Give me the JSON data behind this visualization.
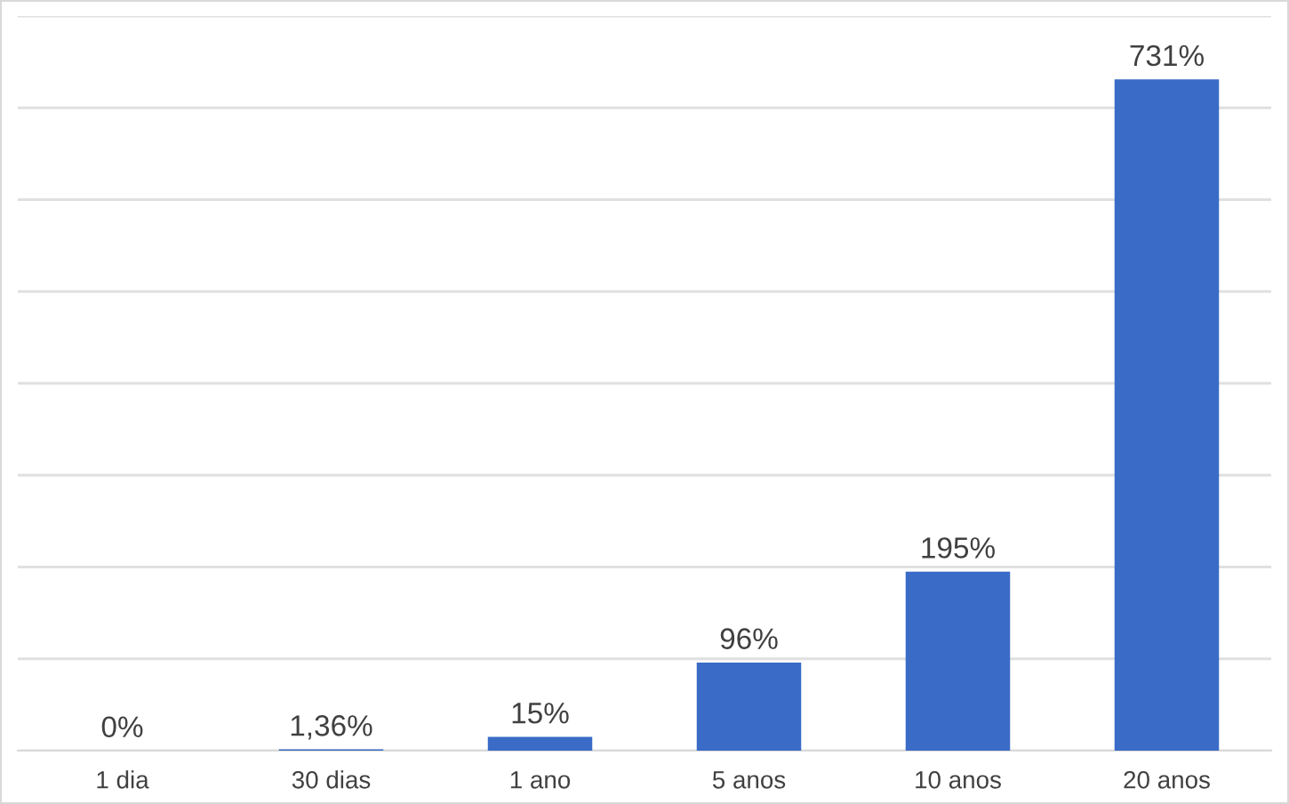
{
  "chart_data": {
    "type": "bar",
    "categories": [
      "1 dia",
      "30 dias",
      "1 ano",
      "5 anos",
      "10 anos",
      "20 anos"
    ],
    "values": [
      0,
      1.36,
      15,
      96,
      195,
      731
    ],
    "value_labels": [
      "0%",
      "1,36%",
      "15%",
      "96%",
      "195%",
      "731%"
    ],
    "color": "#3a6bc7",
    "ylim": [
      0,
      800
    ],
    "yticks": [
      {
        "value": 0,
        "label": null
      },
      {
        "value": 100,
        "label": null
      },
      {
        "value": 200,
        "label": null
      },
      {
        "value": 300,
        "label": null
      },
      {
        "value": 400,
        "label": null
      },
      {
        "value": 500,
        "label": null
      },
      {
        "value": 600,
        "label": null
      },
      {
        "value": 700,
        "label": null
      },
      {
        "value": 800,
        "label": null
      }
    ],
    "tick_labels": "x",
    "grid": "y"
  }
}
